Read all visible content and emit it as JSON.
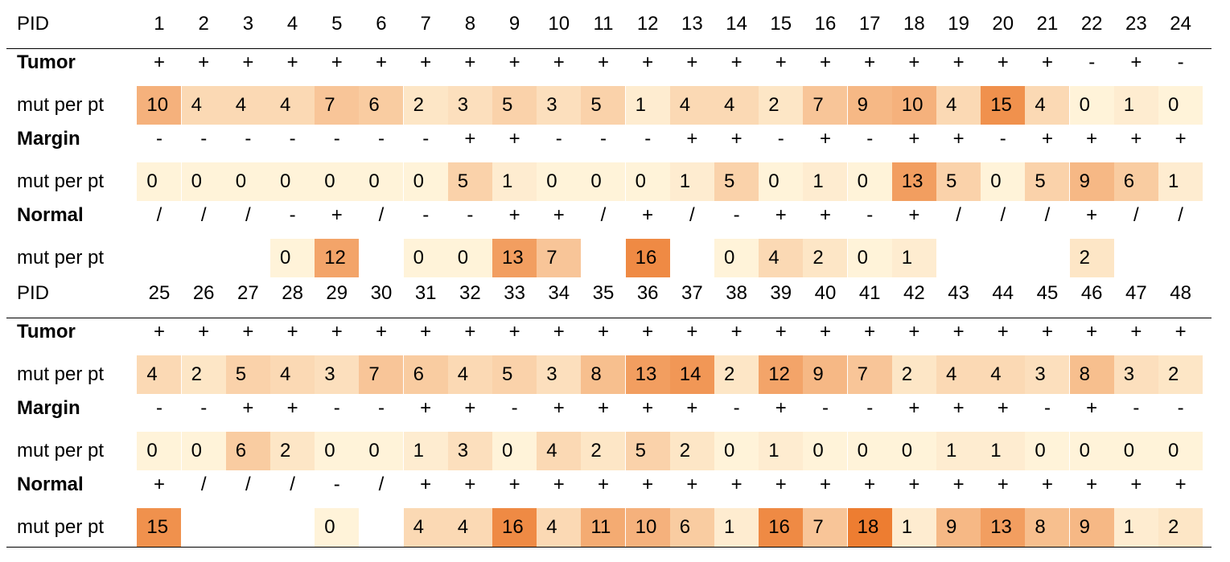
{
  "chart_data": {
    "type": "heatmap",
    "color_scale": {
      "low": "#fff3d9",
      "high": "#ed7d31",
      "min": 0,
      "max": 18
    },
    "blocks": [
      {
        "header_label": "PID",
        "pids": [
          "1",
          "2",
          "3",
          "4",
          "5",
          "6",
          "7",
          "8",
          "9",
          "10",
          "11",
          "12",
          "13",
          "14",
          "15",
          "16",
          "17",
          "18",
          "19",
          "20",
          "21",
          "22",
          "23",
          "24"
        ],
        "groups": [
          {
            "name": "Tumor",
            "status": [
              "+",
              "+",
              "+",
              "+",
              "+",
              "+",
              "+",
              "+",
              "+",
              "+",
              "+",
              "+",
              "+",
              "+",
              "+",
              "+",
              "+",
              "+",
              "+",
              "+",
              "+",
              "-",
              "+",
              "-"
            ],
            "mut_label": "mut per pt",
            "mut": [
              10,
              4,
              4,
              4,
              7,
              6,
              2,
              3,
              5,
              3,
              5,
              1,
              4,
              4,
              2,
              7,
              9,
              10,
              4,
              15,
              4,
              0,
              1,
              0
            ]
          },
          {
            "name": "Margin",
            "status": [
              "-",
              "-",
              "-",
              "-",
              "-",
              "-",
              "-",
              "+",
              "+",
              "-",
              "-",
              "-",
              "+",
              "+",
              "-",
              "+",
              "-",
              "+",
              "+",
              "-",
              "+",
              "+",
              "+",
              "+"
            ],
            "mut_label": "mut per pt",
            "mut": [
              0,
              0,
              0,
              0,
              0,
              0,
              0,
              5,
              1,
              0,
              0,
              0,
              1,
              5,
              0,
              1,
              0,
              13,
              5,
              0,
              5,
              9,
              6,
              1
            ]
          },
          {
            "name": "Normal",
            "status": [
              "/",
              "/",
              "/",
              "-",
              "+",
              "/",
              "-",
              "-",
              "+",
              "+",
              "/",
              "+",
              "/",
              "-",
              "+",
              "+",
              "-",
              "+",
              "/",
              "/",
              "/",
              "+",
              "/",
              "/"
            ],
            "mut_label": "mut per pt",
            "mut": [
              null,
              null,
              null,
              0,
              12,
              null,
              0,
              0,
              13,
              7,
              null,
              16,
              null,
              0,
              4,
              2,
              0,
              1,
              null,
              null,
              null,
              2,
              null,
              null
            ]
          }
        ]
      },
      {
        "header_label": "PID",
        "pids": [
          "25",
          "26",
          "27",
          "28",
          "29",
          "30",
          "31",
          "32",
          "33",
          "34",
          "35",
          "36",
          "37",
          "38",
          "39",
          "40",
          "41",
          "42",
          "43",
          "44",
          "45",
          "46",
          "47",
          "48"
        ],
        "groups": [
          {
            "name": "Tumor",
            "status": [
              "+",
              "+",
              "+",
              "+",
              "+",
              "+",
              "+",
              "+",
              "+",
              "+",
              "+",
              "+",
              "+",
              "+",
              "+",
              "+",
              "+",
              "+",
              "+",
              "+",
              "+",
              "+",
              "+",
              "+"
            ],
            "mut_label": "mut per pt",
            "mut": [
              4,
              2,
              5,
              4,
              3,
              7,
              6,
              4,
              5,
              3,
              8,
              13,
              14,
              2,
              12,
              9,
              7,
              2,
              4,
              4,
              3,
              8,
              3,
              2
            ]
          },
          {
            "name": "Margin",
            "status": [
              "-",
              "-",
              "+",
              "+",
              "-",
              "-",
              "+",
              "+",
              "-",
              "+",
              "+",
              "+",
              "+",
              "-",
              "+",
              "-",
              "-",
              "+",
              "+",
              "+",
              "-",
              "+",
              "-",
              "-"
            ],
            "mut_label": "mut per pt",
            "mut": [
              0,
              0,
              6,
              2,
              0,
              0,
              1,
              3,
              0,
              4,
              2,
              5,
              2,
              0,
              1,
              0,
              0,
              0,
              1,
              1,
              0,
              0,
              0,
              0
            ]
          },
          {
            "name": "Normal",
            "status": [
              "+",
              "/",
              "/",
              "/",
              "-",
              "/",
              "+",
              "+",
              "+",
              "+",
              "+",
              "+",
              "+",
              "+",
              "+",
              "+",
              "+",
              "+",
              "+",
              "+",
              "+",
              "+",
              "+",
              "+"
            ],
            "mut_label": "mut per pt",
            "mut": [
              15,
              null,
              null,
              null,
              0,
              null,
              4,
              4,
              16,
              4,
              11,
              10,
              6,
              1,
              16,
              7,
              18,
              1,
              9,
              13,
              8,
              9,
              1,
              2
            ]
          }
        ]
      }
    ]
  }
}
